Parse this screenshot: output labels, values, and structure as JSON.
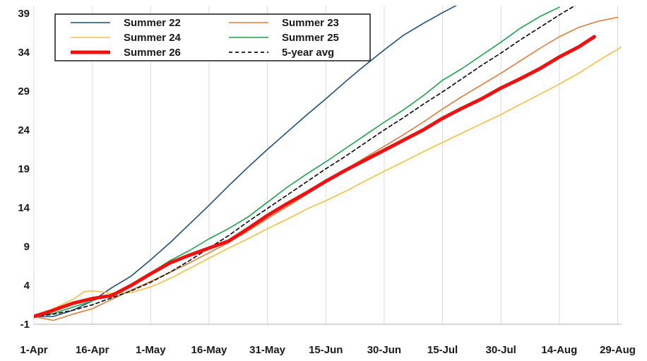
{
  "chart_data": {
    "type": "line",
    "title": "",
    "xlabel": "",
    "ylabel": "",
    "x_tick_labels": [
      "1-Apr",
      "16-Apr",
      "1-May",
      "16-May",
      "31-May",
      "15-Jun",
      "30-Jun",
      "15-Jul",
      "30-Jul",
      "14-Aug",
      "29-Aug"
    ],
    "x_tick_days": [
      0,
      15,
      30,
      45,
      60,
      75,
      90,
      105,
      120,
      135,
      150
    ],
    "xlim": [
      0,
      151
    ],
    "ylim": [
      -1,
      40
    ],
    "y_ticks": [
      -1,
      4,
      9,
      14,
      19,
      24,
      29,
      34,
      39
    ],
    "grid": "vertical",
    "legend_position": "top-left",
    "series": [
      {
        "name": "Summer 22",
        "color": "#1f4e79",
        "style": "solid",
        "width": 1.6,
        "x": [
          0,
          5,
          10,
          15,
          20,
          25,
          30,
          35,
          40,
          45,
          50,
          55,
          60,
          65,
          70,
          75,
          80,
          85,
          90,
          95,
          100,
          105,
          110,
          113
        ],
        "y": [
          0,
          0,
          0.8,
          2,
          3.7,
          5.2,
          7.3,
          9.5,
          11.9,
          14.3,
          16.8,
          19.2,
          21.5,
          23.7,
          25.9,
          28,
          30.2,
          32.3,
          34.3,
          36.2,
          37.7,
          39.1,
          40.4,
          41.1
        ]
      },
      {
        "name": "Summer 23",
        "color": "#e07b39",
        "style": "solid",
        "width": 1.6,
        "x": [
          0,
          5,
          10,
          15,
          20,
          25,
          30,
          35,
          40,
          45,
          50,
          55,
          60,
          65,
          70,
          75,
          80,
          85,
          90,
          95,
          100,
          105,
          110,
          115,
          120,
          125,
          130,
          135,
          140,
          145,
          150
        ],
        "y": [
          0,
          -0.5,
          0.3,
          1,
          2.2,
          3.4,
          4.5,
          5.7,
          6.9,
          8.2,
          9.5,
          11,
          12.6,
          14.1,
          15.7,
          17.3,
          18.9,
          20.4,
          21.9,
          23.4,
          25,
          26.7,
          28.3,
          29.8,
          31.3,
          32.9,
          34.5,
          36,
          37.2,
          38,
          38.5
        ]
      },
      {
        "name": "Summer 24",
        "color": "#f6be45",
        "style": "solid",
        "width": 1.6,
        "x": [
          0,
          5,
          10,
          13,
          15,
          20,
          25,
          30,
          35,
          40,
          45,
          50,
          55,
          60,
          65,
          70,
          75,
          80,
          85,
          90,
          95,
          100,
          105,
          110,
          115,
          120,
          125,
          130,
          135,
          140,
          145,
          151
        ],
        "y": [
          0,
          1,
          2.2,
          3.2,
          3.3,
          3,
          3.1,
          3.8,
          4.9,
          6.2,
          7.5,
          8.8,
          10,
          11.3,
          12.5,
          13.8,
          14.9,
          16.1,
          17.4,
          18.7,
          19.9,
          21.2,
          22.4,
          23.6,
          24.8,
          26,
          27.3,
          28.6,
          29.9,
          31.3,
          32.9,
          34.7
        ]
      },
      {
        "name": "Summer 25",
        "color": "#1aa34a",
        "style": "solid",
        "width": 1.6,
        "x": [
          0,
          5,
          10,
          15,
          20,
          25,
          30,
          35,
          40,
          45,
          50,
          55,
          60,
          65,
          70,
          75,
          80,
          85,
          90,
          95,
          100,
          105,
          110,
          115,
          120,
          125,
          130,
          135
        ],
        "y": [
          0,
          0.4,
          1.2,
          2,
          2.9,
          3.9,
          5.6,
          7.2,
          8.5,
          10,
          11.3,
          12.8,
          14.7,
          16.6,
          18.3,
          19.9,
          21.6,
          23.3,
          25,
          26.6,
          28.4,
          30.4,
          31.9,
          33.6,
          35.3,
          37.1,
          38.6,
          39.8
        ]
      },
      {
        "name": "Summer 26",
        "color": "#ee1111",
        "style": "solid",
        "width": 5,
        "x": [
          0,
          5,
          10,
          15,
          20,
          25,
          30,
          35,
          40,
          45,
          50,
          55,
          60,
          65,
          70,
          75,
          80,
          85,
          90,
          95,
          100,
          105,
          110,
          115,
          120,
          125,
          130,
          135,
          140,
          144
        ],
        "y": [
          0,
          0.8,
          1.7,
          2.3,
          2.7,
          4,
          5.5,
          6.9,
          7.9,
          8.8,
          9.7,
          11.3,
          13,
          14.5,
          15.9,
          17.4,
          18.8,
          20.1,
          21.4,
          22.7,
          24,
          25.5,
          26.8,
          28,
          29.4,
          30.6,
          31.9,
          33.4,
          34.7,
          36
        ]
      },
      {
        "name": "5-year avg",
        "color": "#111111",
        "style": "dashed",
        "width": 1.7,
        "x": [
          0,
          5,
          10,
          15,
          20,
          25,
          30,
          35,
          40,
          45,
          50,
          55,
          60,
          65,
          70,
          75,
          80,
          85,
          90,
          95,
          100,
          105,
          110,
          115,
          120,
          125,
          130,
          135,
          140,
          144
        ],
        "y": [
          0,
          0.3,
          0.8,
          1.5,
          2.4,
          3.3,
          4.4,
          5.7,
          7.2,
          8.8,
          10.4,
          12.2,
          13.9,
          15.6,
          17.3,
          19,
          20.6,
          22.3,
          24,
          25.6,
          27.3,
          28.9,
          30.6,
          32.3,
          33.9,
          35.6,
          37.2,
          38.8,
          40.3,
          41.4
        ]
      }
    ]
  }
}
